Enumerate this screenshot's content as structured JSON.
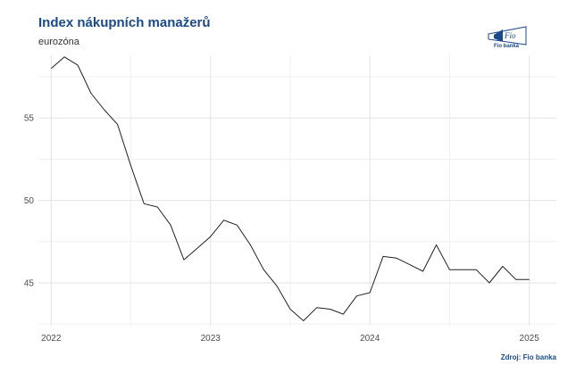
{
  "header": {
    "title": "Index nákupních manažerů",
    "subtitle": "eurozóna"
  },
  "brand": {
    "logo_text": "Fio banka",
    "logo_mark": "Fio",
    "color": "#1a4a8a"
  },
  "footer": {
    "source": "Zdroj: Fio banka"
  },
  "chart_data": {
    "type": "line",
    "title": "Index nákupních manažerů",
    "subtitle": "eurozóna",
    "xlabel": "",
    "ylabel": "",
    "xlim": [
      2021.92,
      2025.17
    ],
    "ylim": [
      42.4,
      58.8
    ],
    "grid": true,
    "line_color": "#222222",
    "x_ticks": [
      {
        "value": 2022,
        "label": "2022"
      },
      {
        "value": 2023,
        "label": "2023"
      },
      {
        "value": 2024,
        "label": "2024"
      },
      {
        "value": 2025,
        "label": "2025"
      }
    ],
    "y_ticks": [
      {
        "value": 45,
        "label": "45"
      },
      {
        "value": 50,
        "label": "50"
      },
      {
        "value": 55,
        "label": "55"
      }
    ],
    "x": [
      2022.0,
      2022.083,
      2022.167,
      2022.25,
      2022.333,
      2022.417,
      2022.5,
      2022.583,
      2022.667,
      2022.75,
      2022.833,
      2022.917,
      2023.0,
      2023.083,
      2023.167,
      2023.25,
      2023.333,
      2023.417,
      2023.5,
      2023.583,
      2023.667,
      2023.75,
      2023.833,
      2023.917,
      2024.0,
      2024.083,
      2024.167,
      2024.25,
      2024.333,
      2024.417,
      2024.5,
      2024.583,
      2024.667,
      2024.75,
      2024.833,
      2024.917,
      2025.0
    ],
    "values": [
      58.0,
      58.7,
      58.2,
      56.5,
      55.5,
      54.6,
      52.1,
      49.8,
      49.6,
      48.5,
      46.4,
      47.1,
      47.8,
      48.8,
      48.5,
      47.3,
      45.8,
      44.8,
      43.4,
      42.7,
      43.5,
      43.4,
      43.1,
      44.2,
      44.4,
      46.6,
      46.5,
      46.1,
      45.7,
      47.3,
      45.8,
      45.8,
      45.8,
      45.0,
      46.0,
      45.2,
      45.2
    ]
  }
}
